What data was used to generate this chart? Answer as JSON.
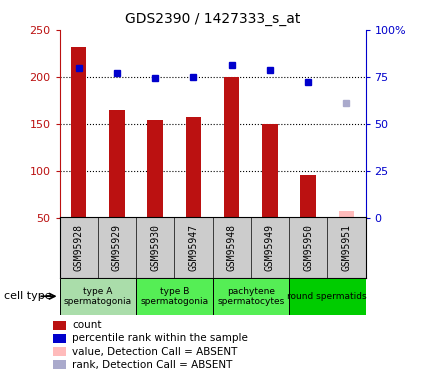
{
  "title": "GDS2390 / 1427333_s_at",
  "samples": [
    "GSM95928",
    "GSM95929",
    "GSM95930",
    "GSM95947",
    "GSM95948",
    "GSM95949",
    "GSM95950",
    "GSM95951"
  ],
  "counts": [
    232,
    165,
    154,
    157,
    200,
    150,
    95,
    null
  ],
  "counts_absent": [
    null,
    null,
    null,
    null,
    null,
    null,
    null,
    57
  ],
  "percentile_ranks": [
    210,
    204,
    199,
    200,
    213,
    207,
    195,
    null
  ],
  "percentile_ranks_absent": [
    null,
    null,
    null,
    null,
    null,
    null,
    null,
    172
  ],
  "count_bar_color": "#bb1111",
  "count_absent_bar_color": "#ffbbbb",
  "rank_dot_color": "#0000cc",
  "rank_absent_dot_color": "#aaaacc",
  "ylim_left": [
    50,
    250
  ],
  "ylim_right": [
    0,
    100
  ],
  "yticks_left": [
    50,
    100,
    150,
    200,
    250
  ],
  "yticks_right": [
    0,
    25,
    50,
    75,
    100
  ],
  "yticklabels_right": [
    "0",
    "25",
    "50",
    "75",
    "100%"
  ],
  "grid_vals": [
    100,
    150,
    200
  ],
  "cell_type_groups": [
    {
      "label": "type A\nspermatogonia",
      "start": 0,
      "end": 1,
      "color": "#aaddaa"
    },
    {
      "label": "type B\nspermatogonia",
      "start": 2,
      "end": 3,
      "color": "#55ee55"
    },
    {
      "label": "pachytene\nspermatocytes",
      "start": 4,
      "end": 5,
      "color": "#55ee55"
    },
    {
      "label": "round spermatids",
      "start": 6,
      "end": 7,
      "color": "#00cc00"
    }
  ],
  "cell_type_label": "cell type",
  "legend_items": [
    {
      "color": "#bb1111",
      "label": "count"
    },
    {
      "color": "#0000cc",
      "label": "percentile rank within the sample"
    },
    {
      "color": "#ffbbbb",
      "label": "value, Detection Call = ABSENT"
    },
    {
      "color": "#aaaacc",
      "label": "rank, Detection Call = ABSENT"
    }
  ],
  "sample_area_color": "#cccccc",
  "n": 8
}
